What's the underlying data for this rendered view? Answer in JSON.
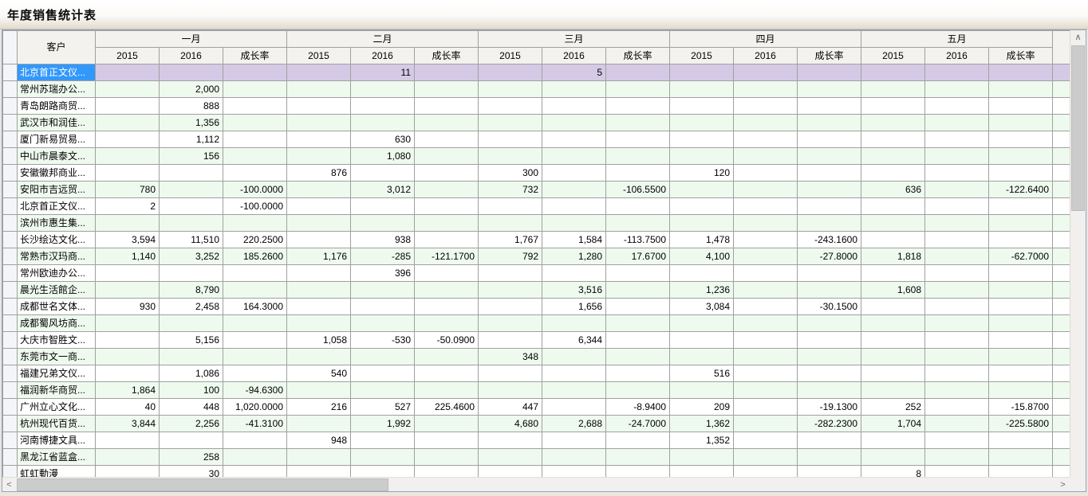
{
  "title": "年度销售统计表",
  "grid": {
    "customer_header": "客户",
    "months": [
      "一月",
      "二月",
      "三月",
      "四月",
      "五月"
    ],
    "sub_headers": [
      "2015",
      "2016",
      "成长率"
    ],
    "rows": [
      {
        "name": "北京首正文仪...",
        "selected": true,
        "values": [
          "",
          "",
          "",
          "",
          "11",
          "",
          "",
          "5",
          "",
          "",
          "",
          "",
          "",
          "",
          ""
        ]
      },
      {
        "name": "常州苏瑞办公...",
        "values": [
          "",
          "2,000",
          "",
          "",
          "",
          "",
          "",
          "",
          "",
          "",
          "",
          "",
          "",
          "",
          ""
        ]
      },
      {
        "name": "青岛朗路商贸...",
        "values": [
          "",
          "888",
          "",
          "",
          "",
          "",
          "",
          "",
          "",
          "",
          "",
          "",
          "",
          "",
          ""
        ]
      },
      {
        "name": "武汉市和润佳...",
        "values": [
          "",
          "1,356",
          "",
          "",
          "",
          "",
          "",
          "",
          "",
          "",
          "",
          "",
          "",
          "",
          ""
        ]
      },
      {
        "name": "厦门新易贸易...",
        "values": [
          "",
          "1,112",
          "",
          "",
          "630",
          "",
          "",
          "",
          "",
          "",
          "",
          "",
          "",
          "",
          ""
        ]
      },
      {
        "name": "中山市晨泰文...",
        "values": [
          "",
          "156",
          "",
          "",
          "1,080",
          "",
          "",
          "",
          "",
          "",
          "",
          "",
          "",
          "",
          ""
        ]
      },
      {
        "name": "安徽徽邦商业...",
        "values": [
          "",
          "",
          "",
          "876",
          "",
          "",
          "300",
          "",
          "",
          "120",
          "",
          "",
          "",
          "",
          ""
        ]
      },
      {
        "name": "安阳市吉远贸...",
        "values": [
          "780",
          "",
          "-100.0000",
          "",
          "3,012",
          "",
          "732",
          "",
          "-106.5500",
          "",
          "",
          "",
          "636",
          "",
          "-122.6400"
        ]
      },
      {
        "name": "北京首正文仪...",
        "values": [
          "2",
          "",
          "-100.0000",
          "",
          "",
          "",
          "",
          "",
          "",
          "",
          "",
          "",
          "",
          "",
          ""
        ]
      },
      {
        "name": "滨州市惠生集...",
        "values": [
          "",
          "",
          "",
          "",
          "",
          "",
          "",
          "",
          "",
          "",
          "",
          "",
          "",
          "",
          ""
        ]
      },
      {
        "name": "长沙绘达文化...",
        "values": [
          "3,594",
          "11,510",
          "220.2500",
          "",
          "938",
          "",
          "1,767",
          "1,584",
          "-113.7500",
          "1,478",
          "",
          "-243.1600",
          "",
          "",
          ""
        ]
      },
      {
        "name": "常熟市汉玛商...",
        "values": [
          "1,140",
          "3,252",
          "185.2600",
          "1,176",
          "-285",
          "-121.1700",
          "792",
          "1,280",
          "17.6700",
          "4,100",
          "",
          "-27.8000",
          "1,818",
          "",
          "-62.7000"
        ]
      },
      {
        "name": "常州欧迪办公...",
        "values": [
          "",
          "",
          "",
          "",
          "396",
          "",
          "",
          "",
          "",
          "",
          "",
          "",
          "",
          "",
          ""
        ]
      },
      {
        "name": "晨光生活館企...",
        "values": [
          "",
          "8,790",
          "",
          "",
          "",
          "",
          "",
          "3,516",
          "",
          "1,236",
          "",
          "",
          "1,608",
          "",
          ""
        ]
      },
      {
        "name": "成都世名文体...",
        "values": [
          "930",
          "2,458",
          "164.3000",
          "",
          "",
          "",
          "",
          "1,656",
          "",
          "3,084",
          "",
          "-30.1500",
          "",
          "",
          ""
        ]
      },
      {
        "name": "成都蜀风坊商...",
        "values": [
          "",
          "",
          "",
          "",
          "",
          "",
          "",
          "",
          "",
          "",
          "",
          "",
          "",
          "",
          ""
        ]
      },
      {
        "name": "大庆市智胜文...",
        "values": [
          "",
          "5,156",
          "",
          "1,058",
          "-530",
          "-50.0900",
          "",
          "6,344",
          "",
          "",
          "",
          "",
          "",
          "",
          ""
        ]
      },
      {
        "name": "东莞市文一商...",
        "values": [
          "",
          "",
          "",
          "",
          "",
          "",
          "348",
          "",
          "",
          "",
          "",
          "",
          "",
          "",
          ""
        ]
      },
      {
        "name": "福建兄弟文仪...",
        "values": [
          "",
          "1,086",
          "",
          "540",
          "",
          "",
          "",
          "",
          "",
          "516",
          "",
          "",
          "",
          "",
          ""
        ]
      },
      {
        "name": "福润新华商贸...",
        "values": [
          "1,864",
          "100",
          "-94.6300",
          "",
          "",
          "",
          "",
          "",
          "",
          "",
          "",
          "",
          "",
          "",
          ""
        ]
      },
      {
        "name": "广州立心文化...",
        "values": [
          "40",
          "448",
          "1,020.0000",
          "216",
          "527",
          "225.4600",
          "447",
          "",
          "-8.9400",
          "209",
          "",
          "-19.1300",
          "252",
          "",
          "-15.8700"
        ]
      },
      {
        "name": "杭州现代百货...",
        "values": [
          "3,844",
          "2,256",
          "-41.3100",
          "",
          "1,992",
          "",
          "4,680",
          "2,688",
          "-24.7000",
          "1,362",
          "",
          "-282.2300",
          "1,704",
          "",
          "-225.5800"
        ]
      },
      {
        "name": "河南博捷文具...",
        "values": [
          "",
          "",
          "",
          "948",
          "",
          "",
          "",
          "",
          "",
          "1,352",
          "",
          "",
          "",
          "",
          ""
        ]
      },
      {
        "name": "黑龙江省蓝盒...",
        "values": [
          "",
          "258",
          "",
          "",
          "",
          "",
          "",
          "",
          "",
          "",
          "",
          "",
          "",
          "",
          ""
        ]
      },
      {
        "name": "虹虹動漫",
        "values": [
          "",
          "30",
          "",
          "",
          "",
          "",
          "",
          "",
          "",
          "",
          "",
          "",
          "8",
          "",
          ""
        ]
      }
    ]
  },
  "scrollbars": {
    "up_arrow": "∧",
    "down_arrow": "∨",
    "left_arrow": "<",
    "right_arrow": ">"
  },
  "colors": {
    "selected_row_bg": "#d5cae6",
    "selected_name_bg": "#3398fb",
    "stripe_green": "#effaef",
    "header_bg": "#f3f2ee",
    "grid_line": "#a0a0a0",
    "frame_border": "#93a5c4"
  }
}
